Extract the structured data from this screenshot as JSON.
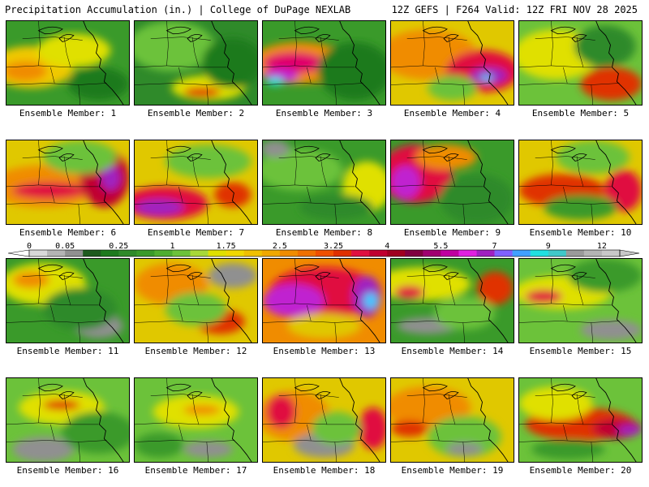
{
  "header": {
    "title_left": "Precipitation Accumulation (in.) | College of DuPage NEXLAB",
    "title_right": "12Z GEFS | F264 Valid: 12Z FRI NOV 28 2025"
  },
  "members": [
    {
      "label": "Ensemble Member: 1",
      "base": "#3a9a2a",
      "blobs": [
        [
          0.2,
          0.55,
          0.35,
          0.25,
          "#f0c800"
        ],
        [
          0.15,
          0.6,
          0.18,
          0.12,
          "#f08c00"
        ],
        [
          0.55,
          0.35,
          0.3,
          0.2,
          "#e0e000"
        ],
        [
          0.75,
          0.75,
          0.25,
          0.2,
          "#1e7a1e"
        ]
      ]
    },
    {
      "label": "Ensemble Member: 2",
      "base": "#2f8a2a",
      "blobs": [
        [
          0.3,
          0.3,
          0.35,
          0.3,
          "#6cc23a"
        ],
        [
          0.6,
          0.8,
          0.3,
          0.15,
          "#e0e000"
        ],
        [
          0.55,
          0.85,
          0.15,
          0.06,
          "#e03000"
        ],
        [
          0.8,
          0.5,
          0.25,
          0.3,
          "#1e7a1e"
        ]
      ]
    },
    {
      "label": "Ensemble Member: 3",
      "base": "#3a9a2a",
      "blobs": [
        [
          0.3,
          0.5,
          0.4,
          0.25,
          "#f08c00"
        ],
        [
          0.25,
          0.5,
          0.25,
          0.13,
          "#e0006a"
        ],
        [
          0.15,
          0.65,
          0.14,
          0.08,
          "#c020d0"
        ],
        [
          0.1,
          0.72,
          0.07,
          0.05,
          "#20e0e0"
        ],
        [
          0.75,
          0.6,
          0.3,
          0.35,
          "#1e7a1e"
        ]
      ]
    },
    {
      "label": "Ensemble Member: 4",
      "base": "#e0c800",
      "blobs": [
        [
          0.3,
          0.4,
          0.4,
          0.3,
          "#f08c00"
        ],
        [
          0.75,
          0.6,
          0.3,
          0.25,
          "#e01040"
        ],
        [
          0.8,
          0.65,
          0.15,
          0.1,
          "#a020c0"
        ],
        [
          0.78,
          0.68,
          0.05,
          0.04,
          "#40c8ff"
        ],
        [
          0.5,
          0.8,
          0.2,
          0.15,
          "#6cc23a"
        ]
      ]
    },
    {
      "label": "Ensemble Member: 5",
      "base": "#6cc23a",
      "blobs": [
        [
          0.3,
          0.4,
          0.35,
          0.3,
          "#e0e000"
        ],
        [
          0.75,
          0.75,
          0.25,
          0.2,
          "#e03000"
        ],
        [
          0.7,
          0.3,
          0.25,
          0.25,
          "#2f8a2a"
        ]
      ]
    },
    {
      "label": "Ensemble Member: 6",
      "base": "#e0c800",
      "blobs": [
        [
          0.3,
          0.55,
          0.45,
          0.25,
          "#f08c00"
        ],
        [
          0.35,
          0.6,
          0.3,
          0.1,
          "#e01040"
        ],
        [
          0.8,
          0.45,
          0.2,
          0.35,
          "#c00030"
        ],
        [
          0.85,
          0.45,
          0.08,
          0.15,
          "#a020c0"
        ],
        [
          0.6,
          0.2,
          0.3,
          0.2,
          "#6cc23a"
        ]
      ]
    },
    {
      "label": "Ensemble Member: 7",
      "base": "#e0c800",
      "blobs": [
        [
          0.25,
          0.75,
          0.35,
          0.2,
          "#e01040"
        ],
        [
          0.2,
          0.8,
          0.2,
          0.1,
          "#a020c0"
        ],
        [
          0.8,
          0.65,
          0.15,
          0.15,
          "#e03000"
        ],
        [
          0.6,
          0.25,
          0.35,
          0.2,
          "#6cc23a"
        ]
      ]
    },
    {
      "label": "Ensemble Member: 8",
      "base": "#3a9a2a",
      "blobs": [
        [
          0.3,
          0.35,
          0.35,
          0.25,
          "#6cc23a"
        ],
        [
          0.85,
          0.55,
          0.2,
          0.3,
          "#e0e000"
        ],
        [
          0.1,
          0.1,
          0.12,
          0.1,
          "#909090"
        ],
        [
          0.6,
          0.8,
          0.3,
          0.15,
          "#2f8a2a"
        ]
      ]
    },
    {
      "label": "Ensemble Member: 9",
      "base": "#3a9a2a",
      "blobs": [
        [
          0.2,
          0.4,
          0.3,
          0.35,
          "#e01040"
        ],
        [
          0.12,
          0.5,
          0.12,
          0.2,
          "#c020d0"
        ],
        [
          0.45,
          0.2,
          0.25,
          0.15,
          "#f08c00"
        ],
        [
          0.7,
          0.7,
          0.3,
          0.3,
          "#2f8a2a"
        ]
      ]
    },
    {
      "label": "Ensemble Member: 10",
      "base": "#e0c800",
      "blobs": [
        [
          0.35,
          0.6,
          0.35,
          0.2,
          "#e03000"
        ],
        [
          0.85,
          0.6,
          0.15,
          0.25,
          "#e01040"
        ],
        [
          0.6,
          0.2,
          0.3,
          0.2,
          "#6cc23a"
        ],
        [
          0.5,
          0.8,
          0.3,
          0.15,
          "#3a9a2a"
        ]
      ]
    },
    {
      "label": "Ensemble Member: 11",
      "base": "#3a9a2a",
      "blobs": [
        [
          0.3,
          0.3,
          0.35,
          0.25,
          "#e0e000"
        ],
        [
          0.2,
          0.25,
          0.15,
          0.1,
          "#f08c00"
        ],
        [
          0.75,
          0.8,
          0.2,
          0.15,
          "#909090"
        ],
        [
          0.6,
          0.6,
          0.3,
          0.25,
          "#2f8a2a"
        ]
      ]
    },
    {
      "label": "Ensemble Member: 12",
      "base": "#e0c800",
      "blobs": [
        [
          0.7,
          0.75,
          0.2,
          0.15,
          "#e03000"
        ],
        [
          0.3,
          0.3,
          0.3,
          0.25,
          "#f08c00"
        ],
        [
          0.8,
          0.2,
          0.2,
          0.15,
          "#909090"
        ],
        [
          0.5,
          0.6,
          0.25,
          0.2,
          "#6cc23a"
        ]
      ]
    },
    {
      "label": "Ensemble Member: 13",
      "base": "#f08c00",
      "blobs": [
        [
          0.5,
          0.4,
          0.45,
          0.3,
          "#e01040"
        ],
        [
          0.25,
          0.5,
          0.25,
          0.2,
          "#c020d0"
        ],
        [
          0.85,
          0.45,
          0.12,
          0.25,
          "#a020c0"
        ],
        [
          0.88,
          0.5,
          0.06,
          0.1,
          "#40c8ff"
        ],
        [
          0.5,
          0.8,
          0.3,
          0.15,
          "#e0c800"
        ]
      ]
    },
    {
      "label": "Ensemble Member: 14",
      "base": "#3a9a2a",
      "blobs": [
        [
          0.25,
          0.3,
          0.4,
          0.2,
          "#e0e000"
        ],
        [
          0.15,
          0.4,
          0.12,
          0.08,
          "#e01040"
        ],
        [
          0.85,
          0.35,
          0.15,
          0.2,
          "#e03000"
        ],
        [
          0.3,
          0.8,
          0.25,
          0.1,
          "#909090"
        ],
        [
          0.6,
          0.65,
          0.25,
          0.2,
          "#6cc23a"
        ]
      ]
    },
    {
      "label": "Ensemble Member: 15",
      "base": "#6cc23a",
      "blobs": [
        [
          0.35,
          0.4,
          0.4,
          0.2,
          "#e0e000"
        ],
        [
          0.2,
          0.45,
          0.15,
          0.08,
          "#e01040"
        ],
        [
          0.75,
          0.85,
          0.25,
          0.12,
          "#909090"
        ],
        [
          0.7,
          0.2,
          0.3,
          0.2,
          "#3a9a2a"
        ]
      ]
    },
    {
      "label": "Ensemble Member: 16",
      "base": "#6cc23a",
      "blobs": [
        [
          0.45,
          0.35,
          0.35,
          0.2,
          "#e0e000"
        ],
        [
          0.45,
          0.32,
          0.15,
          0.06,
          "#e03000"
        ],
        [
          0.3,
          0.85,
          0.25,
          0.15,
          "#909090"
        ],
        [
          0.75,
          0.65,
          0.3,
          0.25,
          "#3a9a2a"
        ]
      ]
    },
    {
      "label": "Ensemble Member: 17",
      "base": "#6cc23a",
      "blobs": [
        [
          0.5,
          0.4,
          0.35,
          0.2,
          "#e0e000"
        ],
        [
          0.55,
          0.38,
          0.15,
          0.06,
          "#f08c00"
        ],
        [
          0.2,
          0.8,
          0.2,
          0.15,
          "#3a9a2a"
        ],
        [
          0.6,
          0.85,
          0.2,
          0.1,
          "#909090"
        ]
      ]
    },
    {
      "label": "Ensemble Member: 18",
      "base": "#e0c800",
      "blobs": [
        [
          0.25,
          0.45,
          0.3,
          0.3,
          "#f08c00"
        ],
        [
          0.15,
          0.4,
          0.12,
          0.2,
          "#e01040"
        ],
        [
          0.9,
          0.6,
          0.12,
          0.25,
          "#e01040"
        ],
        [
          0.5,
          0.8,
          0.25,
          0.15,
          "#909090"
        ],
        [
          0.6,
          0.6,
          0.2,
          0.2,
          "#6cc23a"
        ]
      ]
    },
    {
      "label": "Ensemble Member: 19",
      "base": "#e0c800",
      "blobs": [
        [
          0.3,
          0.35,
          0.35,
          0.25,
          "#f08c00"
        ],
        [
          0.15,
          0.6,
          0.15,
          0.1,
          "#e03000"
        ],
        [
          0.6,
          0.7,
          0.3,
          0.25,
          "#6cc23a"
        ],
        [
          0.6,
          0.85,
          0.15,
          0.08,
          "#909090"
        ]
      ]
    },
    {
      "label": "Ensemble Member: 20",
      "base": "#6cc23a",
      "blobs": [
        [
          0.5,
          0.55,
          0.45,
          0.2,
          "#e03000"
        ],
        [
          0.8,
          0.6,
          0.2,
          0.12,
          "#c00030"
        ],
        [
          0.9,
          0.62,
          0.1,
          0.06,
          "#a020c0"
        ],
        [
          0.3,
          0.3,
          0.3,
          0.2,
          "#e0e000"
        ],
        [
          0.4,
          0.85,
          0.3,
          0.12,
          "#3a9a2a"
        ]
      ]
    }
  ],
  "legend": {
    "labels": [
      {
        "text": "0",
        "index": 0
      },
      {
        "text": "0.05",
        "index": 2
      },
      {
        "text": "0.25",
        "index": 5
      },
      {
        "text": "1",
        "index": 8
      },
      {
        "text": "1.75",
        "index": 11
      },
      {
        "text": "2.5",
        "index": 14
      },
      {
        "text": "3.25",
        "index": 17
      },
      {
        "text": "4",
        "index": 20
      },
      {
        "text": "5.5",
        "index": 23
      },
      {
        "text": "7",
        "index": 26
      },
      {
        "text": "9",
        "index": 29
      },
      {
        "text": "12",
        "index": 32
      }
    ],
    "colors": [
      "#d8d8d8",
      "#b4b4b4",
      "#909090",
      "#1e5a1e",
      "#1e7a1e",
      "#2f8a2a",
      "#3a9a2a",
      "#4fae30",
      "#6cc23a",
      "#a8d838",
      "#e0e000",
      "#f0d800",
      "#f0c000",
      "#f0a800",
      "#f08c00",
      "#f07000",
      "#f05000",
      "#e03000",
      "#e01040",
      "#c00030",
      "#a00020",
      "#800040",
      "#a00070",
      "#c000a0",
      "#e020e0",
      "#a020c0",
      "#8060ff",
      "#40a0ff",
      "#20e0e0",
      "#40c8c8",
      "#9a9a9a",
      "#b4b4b4",
      "#c8c8c8"
    ]
  }
}
